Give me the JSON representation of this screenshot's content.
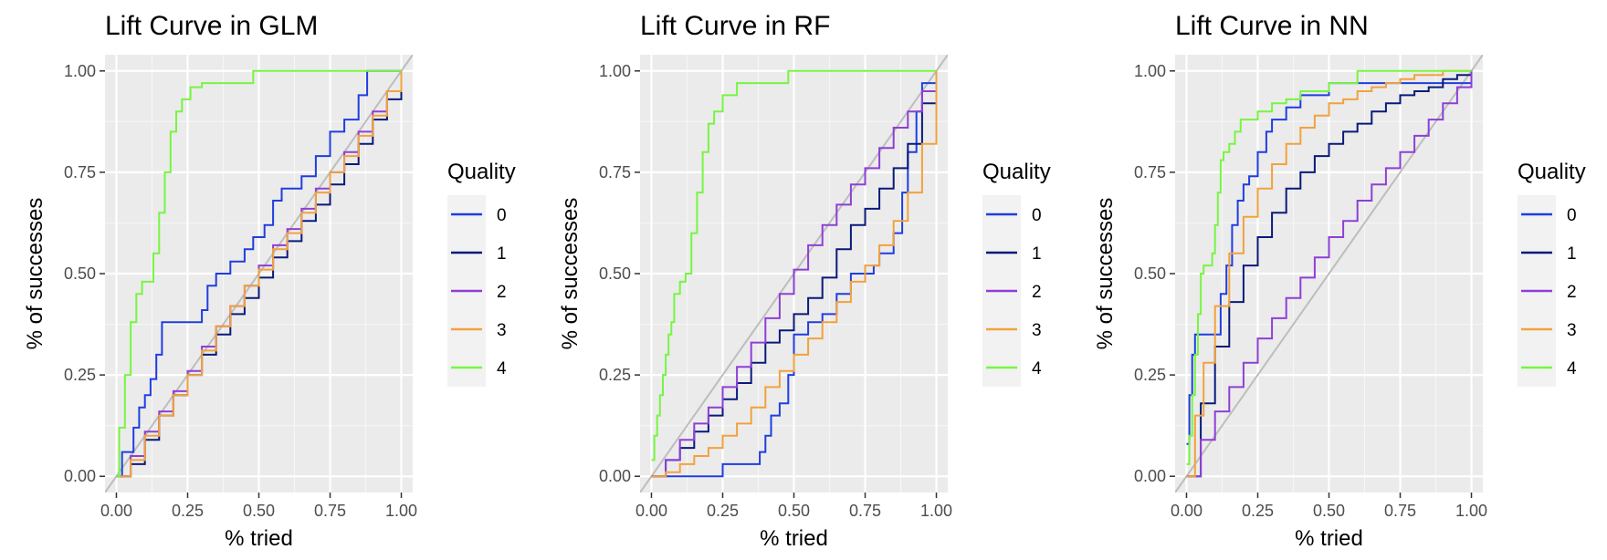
{
  "chart_data": [
    {
      "type": "line",
      "title": "Lift Curve in GLM",
      "xlabel": "% tried",
      "ylabel": "% of successes",
      "xlim": [
        -0.04,
        1.04
      ],
      "ylim": [
        -0.04,
        1.04
      ],
      "xticks": [
        "0.00",
        "0.25",
        "0.50",
        "0.75",
        "1.00"
      ],
      "yticks": [
        "0.00",
        "0.25",
        "0.50",
        "0.75",
        "1.00"
      ],
      "grid": true,
      "reference_line": "diagonal",
      "legend": {
        "title": "Quality",
        "position": "right"
      },
      "series": [
        {
          "name": "0",
          "color": "#1f3ee0",
          "x": [
            0,
            0.02,
            0.04,
            0.06,
            0.08,
            0.1,
            0.12,
            0.14,
            0.16,
            0.2,
            0.25,
            0.3,
            0.32,
            0.35,
            0.38,
            0.4,
            0.45,
            0.48,
            0.52,
            0.55,
            0.58,
            0.6,
            0.65,
            0.7,
            0.75,
            0.8,
            0.85,
            0.88,
            0.92,
            0.95,
            1.0
          ],
          "y": [
            0,
            0.06,
            0.06,
            0.12,
            0.17,
            0.2,
            0.24,
            0.3,
            0.38,
            0.38,
            0.38,
            0.41,
            0.47,
            0.5,
            0.5,
            0.53,
            0.56,
            0.59,
            0.62,
            0.68,
            0.71,
            0.71,
            0.74,
            0.79,
            0.85,
            0.88,
            0.94,
            1.0,
            1.0,
            1.0,
            1.0
          ]
        },
        {
          "name": "1",
          "color": "#0a1a7a",
          "x": [
            0,
            0.05,
            0.1,
            0.15,
            0.2,
            0.25,
            0.3,
            0.35,
            0.4,
            0.45,
            0.5,
            0.55,
            0.6,
            0.65,
            0.7,
            0.75,
            0.8,
            0.85,
            0.9,
            0.95,
            1.0
          ],
          "y": [
            0,
            0.03,
            0.09,
            0.15,
            0.2,
            0.25,
            0.3,
            0.35,
            0.4,
            0.44,
            0.49,
            0.54,
            0.58,
            0.63,
            0.67,
            0.72,
            0.77,
            0.82,
            0.88,
            0.93,
            1.0
          ]
        },
        {
          "name": "2",
          "color": "#8e3fd6",
          "x": [
            0,
            0.05,
            0.1,
            0.15,
            0.2,
            0.25,
            0.3,
            0.35,
            0.4,
            0.45,
            0.5,
            0.55,
            0.6,
            0.65,
            0.7,
            0.75,
            0.8,
            0.85,
            0.9,
            0.95,
            1.0
          ],
          "y": [
            0,
            0.05,
            0.11,
            0.16,
            0.21,
            0.26,
            0.32,
            0.37,
            0.42,
            0.47,
            0.52,
            0.57,
            0.61,
            0.66,
            0.71,
            0.75,
            0.8,
            0.85,
            0.9,
            0.95,
            1.0
          ]
        },
        {
          "name": "3",
          "color": "#f2a23c",
          "x": [
            0,
            0.05,
            0.1,
            0.15,
            0.2,
            0.25,
            0.3,
            0.35,
            0.4,
            0.45,
            0.5,
            0.55,
            0.6,
            0.65,
            0.7,
            0.75,
            0.8,
            0.85,
            0.9,
            0.95,
            1.0
          ],
          "y": [
            0,
            0.04,
            0.1,
            0.15,
            0.2,
            0.25,
            0.31,
            0.37,
            0.42,
            0.47,
            0.51,
            0.56,
            0.6,
            0.65,
            0.7,
            0.75,
            0.79,
            0.84,
            0.89,
            0.95,
            1.0
          ]
        },
        {
          "name": "4",
          "color": "#77f542",
          "x": [
            0,
            0.01,
            0.03,
            0.05,
            0.07,
            0.09,
            0.11,
            0.13,
            0.15,
            0.17,
            0.19,
            0.21,
            0.23,
            0.26,
            0.3,
            0.35,
            0.4,
            0.48,
            0.55,
            0.65,
            0.8,
            1.0
          ],
          "y": [
            0,
            0.12,
            0.25,
            0.38,
            0.45,
            0.48,
            0.48,
            0.55,
            0.65,
            0.75,
            0.85,
            0.9,
            0.93,
            0.96,
            0.97,
            0.97,
            0.97,
            1.0,
            1.0,
            1.0,
            1.0,
            1.0
          ]
        }
      ]
    },
    {
      "type": "line",
      "title": "Lift Curve in RF",
      "xlabel": "% tried",
      "ylabel": "% of successes",
      "xlim": [
        -0.04,
        1.04
      ],
      "ylim": [
        -0.04,
        1.04
      ],
      "xticks": [
        "0.00",
        "0.25",
        "0.50",
        "0.75",
        "1.00"
      ],
      "yticks": [
        "0.00",
        "0.25",
        "0.50",
        "0.75",
        "1.00"
      ],
      "grid": true,
      "reference_line": "diagonal",
      "legend": {
        "title": "Quality",
        "position": "right"
      },
      "series": [
        {
          "name": "0",
          "color": "#1f3ee0",
          "x": [
            0,
            0.1,
            0.2,
            0.25,
            0.3,
            0.35,
            0.38,
            0.4,
            0.42,
            0.45,
            0.48,
            0.5,
            0.55,
            0.58,
            0.6,
            0.65,
            0.7,
            0.75,
            0.78,
            0.8,
            0.85,
            0.88,
            0.9,
            0.93,
            0.95,
            1.0
          ],
          "y": [
            0,
            0,
            0,
            0.03,
            0.03,
            0.03,
            0.06,
            0.1,
            0.15,
            0.18,
            0.25,
            0.35,
            0.38,
            0.38,
            0.4,
            0.45,
            0.5,
            0.5,
            0.52,
            0.55,
            0.6,
            0.7,
            0.8,
            0.9,
            0.97,
            1.0
          ]
        },
        {
          "name": "1",
          "color": "#0a1a7a",
          "x": [
            0,
            0.05,
            0.1,
            0.15,
            0.2,
            0.25,
            0.3,
            0.35,
            0.4,
            0.45,
            0.5,
            0.55,
            0.6,
            0.65,
            0.7,
            0.75,
            0.8,
            0.85,
            0.9,
            0.95,
            1.0
          ],
          "y": [
            0,
            0.04,
            0.07,
            0.11,
            0.15,
            0.19,
            0.23,
            0.28,
            0.33,
            0.36,
            0.4,
            0.44,
            0.49,
            0.56,
            0.62,
            0.66,
            0.71,
            0.76,
            0.82,
            0.92,
            1.0
          ]
        },
        {
          "name": "2",
          "color": "#8e3fd6",
          "x": [
            0,
            0.05,
            0.1,
            0.15,
            0.2,
            0.25,
            0.3,
            0.35,
            0.4,
            0.45,
            0.5,
            0.55,
            0.6,
            0.65,
            0.7,
            0.75,
            0.8,
            0.85,
            0.9,
            0.95,
            1.0
          ],
          "y": [
            0,
            0.04,
            0.09,
            0.13,
            0.17,
            0.22,
            0.27,
            0.33,
            0.39,
            0.45,
            0.51,
            0.57,
            0.62,
            0.67,
            0.72,
            0.76,
            0.81,
            0.86,
            0.9,
            0.95,
            1.0
          ]
        },
        {
          "name": "3",
          "color": "#f2a23c",
          "x": [
            0,
            0.05,
            0.1,
            0.15,
            0.2,
            0.25,
            0.3,
            0.35,
            0.4,
            0.45,
            0.5,
            0.55,
            0.6,
            0.65,
            0.7,
            0.75,
            0.8,
            0.85,
            0.9,
            0.95,
            1.0
          ],
          "y": [
            0,
            0.01,
            0.03,
            0.05,
            0.07,
            0.1,
            0.13,
            0.17,
            0.22,
            0.26,
            0.3,
            0.34,
            0.38,
            0.43,
            0.48,
            0.52,
            0.57,
            0.63,
            0.7,
            0.82,
            1.0
          ]
        },
        {
          "name": "4",
          "color": "#77f542",
          "x": [
            0,
            0.01,
            0.02,
            0.03,
            0.04,
            0.05,
            0.06,
            0.07,
            0.08,
            0.1,
            0.12,
            0.14,
            0.16,
            0.18,
            0.2,
            0.22,
            0.25,
            0.3,
            0.35,
            0.4,
            0.48,
            0.55,
            0.65,
            0.8,
            1.0
          ],
          "y": [
            0.04,
            0.1,
            0.15,
            0.2,
            0.25,
            0.3,
            0.35,
            0.38,
            0.45,
            0.48,
            0.5,
            0.6,
            0.7,
            0.8,
            0.87,
            0.9,
            0.94,
            0.97,
            0.97,
            0.97,
            1.0,
            1.0,
            1.0,
            1.0,
            1.0
          ]
        }
      ]
    },
    {
      "type": "line",
      "title": "Lift Curve in NN",
      "xlabel": "% tried",
      "ylabel": "% of successes",
      "xlim": [
        -0.04,
        1.04
      ],
      "ylim": [
        -0.04,
        1.04
      ],
      "xticks": [
        "0.00",
        "0.25",
        "0.50",
        "0.75",
        "1.00"
      ],
      "yticks": [
        "0.00",
        "0.25",
        "0.50",
        "0.75",
        "1.00"
      ],
      "grid": true,
      "reference_line": "diagonal",
      "legend": {
        "title": "Quality",
        "position": "right"
      },
      "series": [
        {
          "name": "0",
          "color": "#1f3ee0",
          "x": [
            0,
            0.01,
            0.02,
            0.03,
            0.05,
            0.08,
            0.1,
            0.12,
            0.14,
            0.16,
            0.18,
            0.2,
            0.22,
            0.25,
            0.28,
            0.3,
            0.35,
            0.4,
            0.45,
            0.5,
            0.6,
            0.7,
            0.8,
            0.9,
            1.0
          ],
          "y": [
            0.08,
            0.2,
            0.3,
            0.35,
            0.35,
            0.35,
            0.35,
            0.45,
            0.52,
            0.62,
            0.68,
            0.72,
            0.74,
            0.8,
            0.85,
            0.88,
            0.91,
            0.94,
            0.94,
            0.97,
            0.97,
            0.97,
            0.97,
            0.97,
            1.0
          ]
        },
        {
          "name": "1",
          "color": "#0a1a7a",
          "x": [
            0,
            0.05,
            0.1,
            0.15,
            0.2,
            0.25,
            0.3,
            0.35,
            0.4,
            0.45,
            0.5,
            0.55,
            0.6,
            0.65,
            0.7,
            0.75,
            0.8,
            0.85,
            0.9,
            0.95,
            1.0
          ],
          "y": [
            0,
            0.18,
            0.32,
            0.43,
            0.52,
            0.59,
            0.65,
            0.71,
            0.75,
            0.79,
            0.82,
            0.85,
            0.87,
            0.9,
            0.92,
            0.94,
            0.95,
            0.96,
            0.98,
            0.99,
            1.0
          ]
        },
        {
          "name": "2",
          "color": "#8e3fd6",
          "x": [
            0,
            0.05,
            0.1,
            0.15,
            0.2,
            0.25,
            0.3,
            0.35,
            0.4,
            0.45,
            0.5,
            0.55,
            0.6,
            0.65,
            0.7,
            0.75,
            0.8,
            0.85,
            0.9,
            0.95,
            1.0
          ],
          "y": [
            0,
            0.09,
            0.16,
            0.22,
            0.28,
            0.34,
            0.39,
            0.44,
            0.49,
            0.54,
            0.59,
            0.63,
            0.68,
            0.72,
            0.76,
            0.8,
            0.84,
            0.88,
            0.92,
            0.96,
            1.0
          ]
        },
        {
          "name": "3",
          "color": "#f2a23c",
          "x": [
            0,
            0.03,
            0.06,
            0.1,
            0.15,
            0.2,
            0.25,
            0.3,
            0.35,
            0.4,
            0.45,
            0.5,
            0.55,
            0.6,
            0.65,
            0.7,
            0.75,
            0.8,
            0.85,
            0.9,
            1.0
          ],
          "y": [
            0,
            0.15,
            0.28,
            0.42,
            0.55,
            0.64,
            0.71,
            0.77,
            0.82,
            0.86,
            0.89,
            0.92,
            0.93,
            0.95,
            0.96,
            0.97,
            0.98,
            0.99,
            0.99,
            1.0,
            1.0
          ]
        },
        {
          "name": "4",
          "color": "#77f542",
          "x": [
            0,
            0.01,
            0.02,
            0.03,
            0.04,
            0.05,
            0.06,
            0.07,
            0.09,
            0.1,
            0.11,
            0.12,
            0.13,
            0.15,
            0.17,
            0.19,
            0.21,
            0.25,
            0.3,
            0.35,
            0.4,
            0.5,
            0.6,
            0.65,
            0.8,
            1.0
          ],
          "y": [
            0.03,
            0.1,
            0.2,
            0.3,
            0.4,
            0.5,
            0.52,
            0.52,
            0.55,
            0.62,
            0.7,
            0.78,
            0.8,
            0.82,
            0.85,
            0.88,
            0.88,
            0.9,
            0.92,
            0.93,
            0.95,
            0.97,
            1.0,
            1.0,
            1.0,
            1.0
          ]
        }
      ]
    }
  ]
}
